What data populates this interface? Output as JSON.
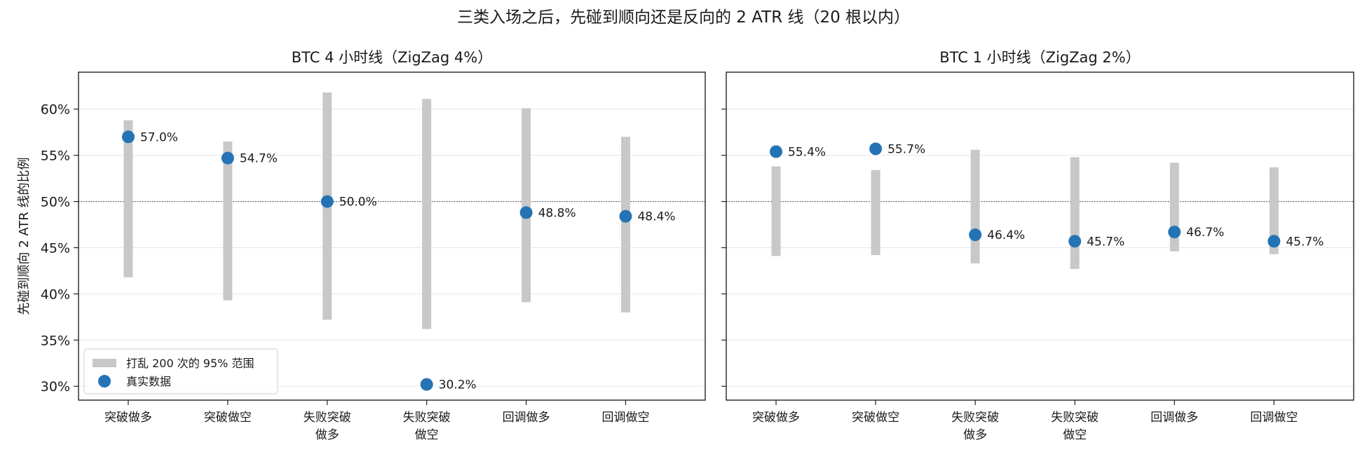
{
  "chart_data": {
    "type": "scatter",
    "title": "三类入场之后，先碰到顺向还是反向的 2 ATR 线（20 根以内）",
    "ylabel": "先碰到顺向 2 ATR 线的比例",
    "ylim": [
      0.285,
      0.64
    ],
    "yticks": [
      0.3,
      0.35,
      0.4,
      0.45,
      0.5,
      0.55,
      0.6
    ],
    "ytick_labels": [
      "30%",
      "35%",
      "40%",
      "45%",
      "50%",
      "55%",
      "60%"
    ],
    "reference_line": 0.5,
    "grid": "horizontal",
    "colors": {
      "point": "#2474b5",
      "range": "#c8c8c8",
      "grid": "#e6e6e6",
      "reference": "#333333"
    },
    "legend": {
      "position": "lower-left",
      "entries": [
        {
          "label": "打乱 200 次的 95% 范围",
          "kind": "range"
        },
        {
          "label": "真实数据",
          "kind": "point"
        }
      ]
    },
    "panels": [
      {
        "title": "BTC 4 小时线（ZigZag 4%）",
        "categories": [
          [
            "突破做多"
          ],
          [
            "突破做空"
          ],
          [
            "失败突破",
            "做多"
          ],
          [
            "失败突破",
            "做空"
          ],
          [
            "回调做多"
          ],
          [
            "回调做空"
          ]
        ],
        "values": [
          0.57,
          0.547,
          0.5,
          0.302,
          0.488,
          0.484
        ],
        "value_labels": [
          "57.0%",
          "54.7%",
          "50.0%",
          "30.2%",
          "48.8%",
          "48.4%"
        ],
        "range_low": [
          0.418,
          0.393,
          0.372,
          0.362,
          0.391,
          0.38
        ],
        "range_high": [
          0.588,
          0.565,
          0.618,
          0.611,
          0.601,
          0.57
        ]
      },
      {
        "title": "BTC 1 小时线（ZigZag 2%）",
        "categories": [
          [
            "突破做多"
          ],
          [
            "突破做空"
          ],
          [
            "失败突破",
            "做多"
          ],
          [
            "失败突破",
            "做空"
          ],
          [
            "回调做多"
          ],
          [
            "回调做空"
          ]
        ],
        "values": [
          0.554,
          0.557,
          0.464,
          0.457,
          0.467,
          0.457
        ],
        "value_labels": [
          "55.4%",
          "55.7%",
          "46.4%",
          "45.7%",
          "46.7%",
          "45.7%"
        ],
        "range_low": [
          0.441,
          0.442,
          0.433,
          0.427,
          0.446,
          0.443
        ],
        "range_high": [
          0.538,
          0.534,
          0.556,
          0.548,
          0.542,
          0.537
        ]
      }
    ]
  }
}
